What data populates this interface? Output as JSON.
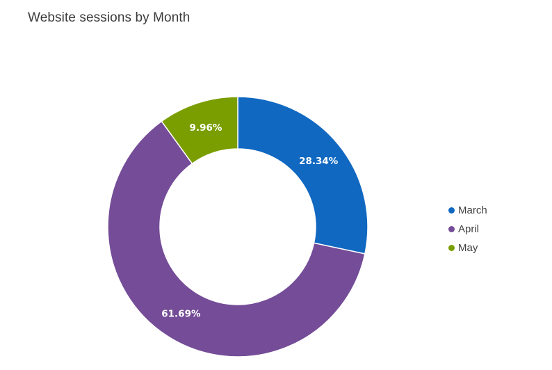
{
  "chart_data": {
    "type": "pie",
    "title": "Website sessions by Month",
    "categories": [
      "March",
      "April",
      "May"
    ],
    "values": [
      28.34,
      61.69,
      9.96
    ],
    "value_labels": [
      "28.34%",
      "61.69%",
      "9.96%"
    ],
    "colors": [
      "#1068c1",
      "#744c97",
      "#7a9e00"
    ],
    "legend_position": "right"
  }
}
